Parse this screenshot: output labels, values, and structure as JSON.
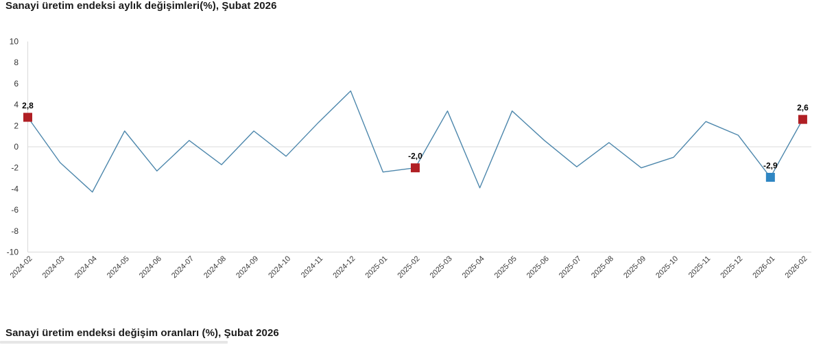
{
  "top_chart": {
    "title": "Sanayi üretim endeksi aylık değişimleri(%), Şubat 2026"
  },
  "bottom_section": {
    "title": "Sanayi üretim endeksi değişim oranları (%), Şubat 2026"
  },
  "chart_data": {
    "type": "line",
    "title": "Sanayi üretim endeksi aylık değişimleri(%), Şubat 2026",
    "xlabel": "",
    "ylabel": "",
    "ylim": [
      -10,
      10
    ],
    "yticks": [
      10,
      8,
      6,
      4,
      2,
      0,
      -2,
      -4,
      -6,
      -8,
      -10
    ],
    "grid": "zero-line-only",
    "legend": "none",
    "categories": [
      "2024-02",
      "2024-03",
      "2024-04",
      "2024-05",
      "2024-06",
      "2024-07",
      "2024-08",
      "2024-09",
      "2024-10",
      "2024-11",
      "2024-12",
      "2025-01",
      "2025-02",
      "2025-03",
      "2025-04",
      "2025-05",
      "2025-06",
      "2025-07",
      "2025-08",
      "2025-09",
      "2025-10",
      "2025-11",
      "2025-12",
      "2026-01",
      "2026-02"
    ],
    "values": [
      2.8,
      -1.5,
      -4.3,
      1.5,
      -2.3,
      0.6,
      -1.7,
      1.5,
      -0.9,
      2.3,
      5.3,
      -2.4,
      -2.0,
      3.4,
      -3.9,
      3.4,
      0.6,
      -1.9,
      0.4,
      -2.0,
      -1.0,
      2.4,
      1.1,
      -2.9,
      2.6
    ],
    "highlighted_points": [
      {
        "category": "2024-02",
        "value": 2.8,
        "label": "2,8",
        "marker_color": "#b01f24"
      },
      {
        "category": "2025-02",
        "value": -2.0,
        "label": "-2,0",
        "marker_color": "#b01f24"
      },
      {
        "category": "2026-01",
        "value": -2.9,
        "label": "-2,9",
        "marker_color": "#2f86c3"
      },
      {
        "category": "2026-02",
        "value": 2.6,
        "label": "2,6",
        "marker_color": "#b01f24"
      }
    ],
    "colors": {
      "line": "#4d87ac",
      "axis": "#d9d9d9",
      "zero_line": "#e7e7e7",
      "red_marker": "#b01f24",
      "blue_marker": "#2f86c3"
    }
  }
}
